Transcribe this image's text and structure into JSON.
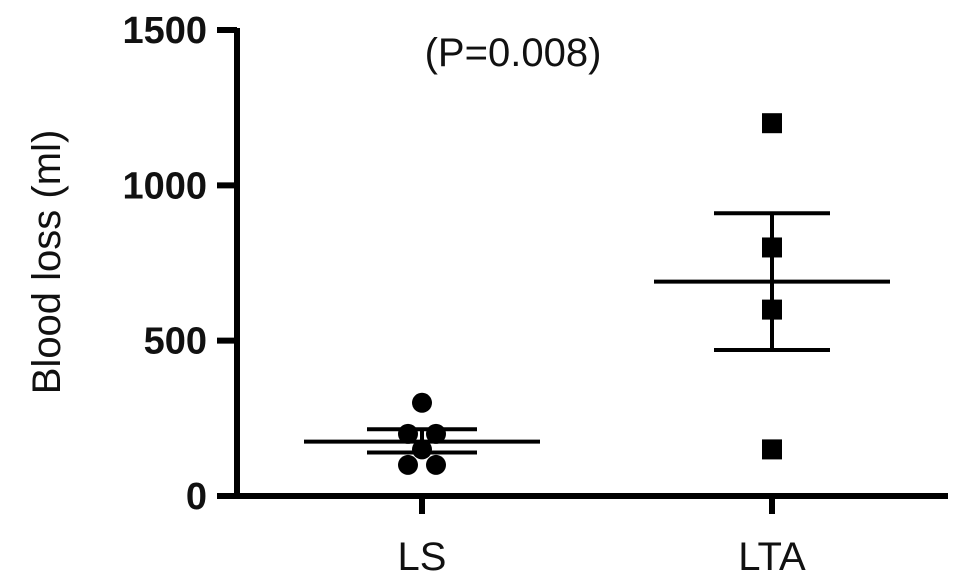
{
  "chart_data": {
    "type": "scatter",
    "subtype": "dot-plot-with-mean-and-sem",
    "ylabel": "Blood loss (ml)",
    "xlabel": "",
    "ylim": [
      0,
      1500
    ],
    "yticks": [
      0,
      500,
      1000,
      1500
    ],
    "annotation": "(P=0.008)",
    "categories": [
      "LS",
      "LTA"
    ],
    "groups": [
      {
        "category": "LS",
        "marker": "circle",
        "points": [
          300,
          200,
          150,
          100,
          100,
          200
        ],
        "mean": 175,
        "sem_upper": 215,
        "sem_lower": 140
      },
      {
        "category": "LTA",
        "marker": "square",
        "points": [
          1200,
          800,
          600,
          150
        ],
        "mean": 690,
        "sem_upper": 910,
        "sem_lower": 470
      }
    ],
    "colors": {
      "ink": "#000000"
    }
  }
}
